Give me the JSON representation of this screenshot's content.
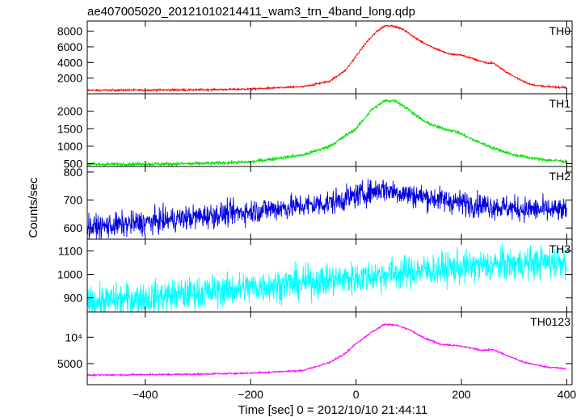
{
  "chart_data": {
    "type": "line",
    "title": "ae407005020_20121010214411_wam3_trn_4band_long.qdp",
    "xlabel": "Time [sec] 0 = 2012/10/10 21:44:11",
    "ylabel": "Counts/sec",
    "xlim": [
      -510,
      410
    ],
    "x_ticks": [
      -400,
      -200,
      0,
      200,
      400
    ],
    "x_tick_labels": [
      "−400",
      "−200",
      "0",
      "200",
      "400"
    ],
    "grid": false,
    "panels": [
      {
        "name": "TH0",
        "color": "#ff0000",
        "ylim": [
          0,
          9300
        ],
        "y_ticks": [
          2000,
          4000,
          6000,
          8000
        ],
        "y_tick_labels": [
          "2000",
          "4000",
          "6000",
          "8000"
        ],
        "noise": 60,
        "points": [
          [
            -510,
            450
          ],
          [
            -300,
            500
          ],
          [
            -200,
            600
          ],
          [
            -100,
            900
          ],
          [
            -50,
            1600
          ],
          [
            -20,
            3000
          ],
          [
            0,
            4800
          ],
          [
            20,
            6600
          ],
          [
            40,
            8000
          ],
          [
            55,
            8700
          ],
          [
            70,
            8700
          ],
          [
            90,
            8200
          ],
          [
            120,
            6800
          ],
          [
            150,
            5800
          ],
          [
            175,
            5100
          ],
          [
            200,
            4950
          ],
          [
            230,
            4300
          ],
          [
            250,
            3900
          ],
          [
            260,
            3950
          ],
          [
            280,
            3000
          ],
          [
            300,
            2200
          ],
          [
            330,
            1200
          ],
          [
            360,
            900
          ],
          [
            400,
            800
          ]
        ]
      },
      {
        "name": "TH1",
        "color": "#00e000",
        "ylim": [
          420,
          2500
        ],
        "y_ticks": [
          500,
          1000,
          1500,
          2000
        ],
        "y_tick_labels": [
          "500",
          "1000",
          "1500",
          "2000"
        ],
        "noise": 25,
        "points": [
          [
            -510,
            480
          ],
          [
            -300,
            500
          ],
          [
            -200,
            550
          ],
          [
            -100,
            750
          ],
          [
            -50,
            1000
          ],
          [
            0,
            1500
          ],
          [
            30,
            2050
          ],
          [
            55,
            2300
          ],
          [
            75,
            2300
          ],
          [
            100,
            2050
          ],
          [
            130,
            1700
          ],
          [
            160,
            1520
          ],
          [
            190,
            1420
          ],
          [
            220,
            1200
          ],
          [
            260,
            950
          ],
          [
            300,
            750
          ],
          [
            350,
            620
          ],
          [
            400,
            560
          ]
        ]
      },
      {
        "name": "TH2",
        "color": "#0000e0",
        "ylim": [
          560,
          820
        ],
        "y_ticks": [
          600,
          700,
          800
        ],
        "y_tick_labels": [
          "600",
          "700",
          "800"
        ],
        "noise": 22,
        "points": [
          [
            -510,
            600
          ],
          [
            -400,
            620
          ],
          [
            -300,
            640
          ],
          [
            -200,
            660
          ],
          [
            -100,
            680
          ],
          [
            -50,
            690
          ],
          [
            0,
            715
          ],
          [
            50,
            740
          ],
          [
            100,
            720
          ],
          [
            200,
            690
          ],
          [
            300,
            670
          ],
          [
            400,
            660
          ]
        ]
      },
      {
        "name": "TH3",
        "color": "#00ffff",
        "ylim": [
          840,
          1150
        ],
        "y_ticks": [
          900,
          1000,
          1100
        ],
        "y_tick_labels": [
          "900",
          "1000",
          "1100"
        ],
        "noise": 35,
        "points": [
          [
            -510,
            880
          ],
          [
            -400,
            900
          ],
          [
            -300,
            920
          ],
          [
            -200,
            945
          ],
          [
            -100,
            965
          ],
          [
            0,
            985
          ],
          [
            100,
            1010
          ],
          [
            200,
            1030
          ],
          [
            300,
            1045
          ],
          [
            400,
            1055
          ]
        ]
      },
      {
        "name": "TH0123",
        "color": "#ff00ff",
        "ylim": [
          1000,
          14800
        ],
        "y_ticks": [
          5000,
          10000
        ],
        "y_tick_labels": [
          "5000",
          "10⁴"
        ],
        "noise": 80,
        "points": [
          [
            -510,
            2800
          ],
          [
            -300,
            3000
          ],
          [
            -200,
            3200
          ],
          [
            -100,
            3700
          ],
          [
            -50,
            5200
          ],
          [
            -20,
            7000
          ],
          [
            0,
            8800
          ],
          [
            30,
            11000
          ],
          [
            55,
            12500
          ],
          [
            75,
            12300
          ],
          [
            100,
            11500
          ],
          [
            130,
            9800
          ],
          [
            160,
            8700
          ],
          [
            200,
            8300
          ],
          [
            240,
            7500
          ],
          [
            260,
            7700
          ],
          [
            280,
            6800
          ],
          [
            320,
            5200
          ],
          [
            360,
            4400
          ],
          [
            400,
            4000
          ]
        ]
      }
    ]
  }
}
